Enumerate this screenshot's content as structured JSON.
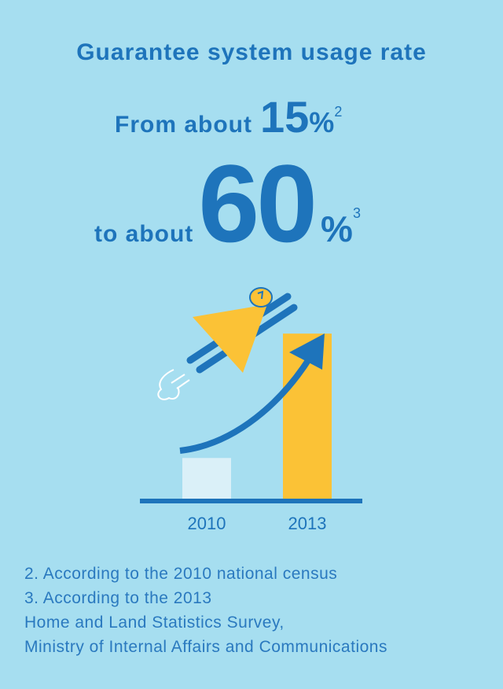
{
  "header": {
    "title": "Guarantee system usage rate",
    "line1_text": "From about",
    "line1_value": "15",
    "line1_unit": "%",
    "line1_note": "2",
    "line2_text": "to about",
    "line2_value": "60",
    "line2_unit": "%",
    "line2_note": "3"
  },
  "colors": {
    "background": "#a6def0",
    "accent_blue": "#1e74bb",
    "bar_2010": "#daf0f8",
    "bar_2013": "#fbc236"
  },
  "chart_data": {
    "type": "bar",
    "categories": [
      "2010",
      "2013"
    ],
    "values": [
      15,
      60
    ],
    "unit": "%",
    "ylim": [
      0,
      70
    ],
    "title": "",
    "xlabel": "",
    "ylabel": "",
    "grid": false,
    "bar_colors": [
      "#daf0f8",
      "#fbc236"
    ],
    "annotations": [
      "rising arrow",
      "rocket-bell illustration"
    ]
  },
  "footnotes": [
    "2. According to the 2010 national census",
    "3. According to the 2013",
    "Home and Land Statistics Survey,",
    "Ministry of Internal Affairs and Communications"
  ]
}
